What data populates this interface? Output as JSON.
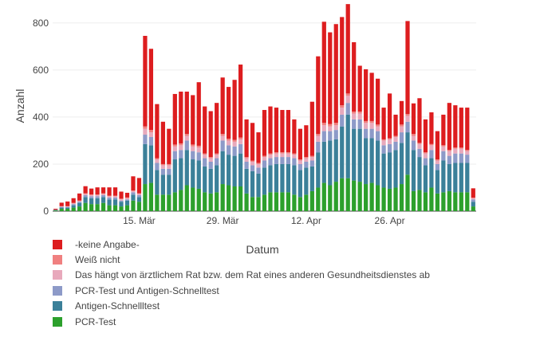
{
  "chart_data": {
    "type": "bar",
    "stacked": true,
    "xlabel": "Datum",
    "ylabel": "Anzahl",
    "ylim": [
      0,
      850
    ],
    "yticks": [
      0,
      200,
      400,
      600,
      800
    ],
    "xtick_labels": [
      "15. Mär",
      "29. Mär",
      "12. Apr",
      "26. Apr"
    ],
    "xtick_indices": [
      14,
      28,
      42,
      56
    ],
    "grid": true,
    "legend_position": "bottom",
    "categories": [
      "2020-03-01",
      "2020-03-02",
      "2020-03-03",
      "2020-03-04",
      "2020-03-05",
      "2020-03-06",
      "2020-03-07",
      "2020-03-08",
      "2020-03-09",
      "2020-03-10",
      "2020-03-11",
      "2020-03-12",
      "2020-03-13",
      "2020-03-14",
      "2020-03-15",
      "2020-03-16",
      "2020-03-17",
      "2020-03-18",
      "2020-03-19",
      "2020-03-20",
      "2020-03-21",
      "2020-03-22",
      "2020-03-23",
      "2020-03-24",
      "2020-03-25",
      "2020-03-26",
      "2020-03-27",
      "2020-03-28",
      "2020-03-29",
      "2020-03-30",
      "2020-03-31",
      "2020-04-01",
      "2020-04-02",
      "2020-04-03",
      "2020-04-04",
      "2020-04-05",
      "2020-04-06",
      "2020-04-07",
      "2020-04-08",
      "2020-04-09",
      "2020-04-10",
      "2020-04-11",
      "2020-04-12",
      "2020-04-13",
      "2020-04-14",
      "2020-04-15",
      "2020-04-16",
      "2020-04-17",
      "2020-04-18",
      "2020-04-19",
      "2020-04-20",
      "2020-04-21",
      "2020-04-22",
      "2020-04-23",
      "2020-04-24",
      "2020-04-25",
      "2020-04-26",
      "2020-04-27",
      "2020-04-28",
      "2020-04-29",
      "2020-04-30",
      "2020-05-01",
      "2020-05-02",
      "2020-05-03",
      "2020-05-04",
      "2020-05-05",
      "2020-05-06",
      "2020-05-07",
      "2020-05-08",
      "2020-05-09",
      "2020-05-10"
    ],
    "series": [
      {
        "name": "PCR-Test",
        "color": "#2ca02c",
        "values": [
          3,
          10,
          10,
          15,
          20,
          35,
          30,
          30,
          35,
          25,
          25,
          20,
          25,
          45,
          40,
          115,
          120,
          70,
          70,
          70,
          80,
          90,
          110,
          100,
          95,
          80,
          75,
          80,
          115,
          110,
          105,
          105,
          75,
          60,
          60,
          70,
          80,
          80,
          80,
          80,
          70,
          60,
          70,
          85,
          100,
          120,
          110,
          125,
          140,
          140,
          130,
          125,
          115,
          120,
          110,
          100,
          95,
          100,
          115,
          155,
          85,
          90,
          80,
          100,
          75,
          80,
          85,
          80,
          80,
          80,
          20
        ]
      },
      {
        "name": "Antigen-Schnellltest",
        "color": "#3b8099",
        "values": [
          2,
          5,
          5,
          10,
          15,
          25,
          25,
          25,
          25,
          25,
          25,
          20,
          20,
          25,
          20,
          170,
          160,
          105,
          85,
          85,
          140,
          135,
          150,
          120,
          120,
          110,
          105,
          115,
          140,
          130,
          130,
          140,
          105,
          110,
          100,
          115,
          115,
          120,
          120,
          120,
          125,
          115,
          115,
          105,
          150,
          175,
          190,
          180,
          220,
          270,
          220,
          225,
          195,
          190,
          190,
          145,
          155,
          160,
          175,
          180,
          175,
          140,
          115,
          125,
          100,
          135,
          115,
          125,
          125,
          125,
          20
        ]
      },
      {
        "name": "PCR-Test und Antigen-Schnelltest",
        "color": "#8d9ac8",
        "values": [
          1,
          3,
          3,
          5,
          5,
          8,
          8,
          8,
          8,
          8,
          8,
          5,
          5,
          10,
          8,
          40,
          35,
          30,
          25,
          25,
          35,
          35,
          40,
          35,
          35,
          35,
          30,
          30,
          45,
          40,
          40,
          40,
          30,
          25,
          25,
          30,
          30,
          30,
          30,
          30,
          30,
          25,
          25,
          25,
          45,
          45,
          40,
          40,
          50,
          50,
          40,
          40,
          40,
          40,
          40,
          35,
          35,
          35,
          45,
          45,
          40,
          35,
          30,
          35,
          25,
          40,
          35,
          40,
          40,
          35,
          10
        ]
      },
      {
        "name": "Das hängt von ärztlichem Rat bzw. dem Rat eines anderen Gesundheitsdienstes ab",
        "color": "#e8a9bc",
        "values": [
          0,
          2,
          2,
          3,
          3,
          5,
          5,
          5,
          5,
          5,
          5,
          5,
          5,
          5,
          5,
          25,
          20,
          15,
          15,
          15,
          20,
          20,
          20,
          20,
          20,
          15,
          15,
          15,
          20,
          20,
          20,
          20,
          15,
          15,
          15,
          15,
          15,
          15,
          15,
          15,
          15,
          15,
          15,
          15,
          25,
          25,
          20,
          20,
          30,
          30,
          25,
          25,
          25,
          25,
          20,
          20,
          20,
          20,
          25,
          25,
          20,
          20,
          20,
          20,
          15,
          20,
          20,
          20,
          20,
          15,
          5
        ]
      },
      {
        "name": "Weiß nicht",
        "color": "#f08080",
        "values": [
          0,
          1,
          1,
          2,
          2,
          3,
          3,
          3,
          3,
          3,
          3,
          3,
          3,
          3,
          3,
          10,
          10,
          5,
          5,
          5,
          8,
          8,
          8,
          8,
          8,
          5,
          5,
          5,
          8,
          8,
          8,
          8,
          5,
          5,
          5,
          5,
          5,
          5,
          5,
          5,
          5,
          5,
          5,
          5,
          8,
          10,
          10,
          10,
          10,
          10,
          8,
          8,
          8,
          8,
          8,
          5,
          5,
          5,
          8,
          8,
          8,
          5,
          5,
          5,
          5,
          5,
          5,
          5,
          5,
          5,
          2
        ]
      },
      {
        "name": "-keine Angabe-",
        "color": "#dd1d1f",
        "values": [
          4,
          15,
          20,
          20,
          30,
          30,
          25,
          30,
          25,
          35,
          35,
          30,
          20,
          60,
          65,
          385,
          345,
          230,
          180,
          150,
          215,
          220,
          180,
          210,
          270,
          200,
          195,
          215,
          240,
          220,
          255,
          310,
          160,
          160,
          130,
          195,
          200,
          190,
          180,
          180,
          145,
          130,
          135,
          230,
          330,
          430,
          390,
          420,
          375,
          380,
          295,
          195,
          220,
          205,
          195,
          135,
          190,
          90,
          100,
          395,
          130,
          190,
          140,
          135,
          120,
          130,
          200,
          180,
          170,
          180,
          40
        ]
      }
    ]
  }
}
